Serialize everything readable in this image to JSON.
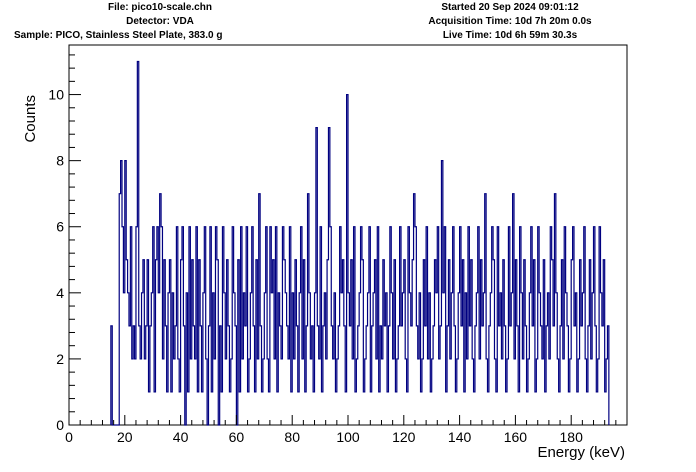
{
  "header": {
    "file": "File: pico10-scale.chn",
    "detector": "Detector: VDA",
    "sample": "Sample: PICO, Stainless Steel Plate, 383.0 g",
    "started": "Started 20 Sep 2024 09:01:12",
    "acquisition": "Acquisition Time: 10d 7h 20m 0.0s",
    "live": "Live Time: 10d 6h 59m 30.3s"
  },
  "colors": {
    "series": "#000080",
    "axis": "#000000",
    "background": "#ffffff"
  },
  "chart_data": {
    "type": "histogram",
    "xlabel": "Energy (keV)",
    "ylabel": "Counts",
    "xlim": [
      0,
      200
    ],
    "ylim": [
      0,
      11.5
    ],
    "x_ticks": [
      0,
      20,
      40,
      60,
      80,
      100,
      120,
      140,
      160,
      180
    ],
    "y_ticks": [
      0,
      2,
      4,
      6,
      8,
      10
    ],
    "bin_width": 0.5,
    "bin_start": 15,
    "values": [
      3,
      0,
      0,
      0,
      0,
      0,
      7,
      8,
      6,
      4,
      8,
      5,
      4,
      3,
      6,
      2,
      3,
      2,
      6,
      11,
      3,
      2,
      4,
      5,
      2,
      3,
      5,
      1,
      3,
      4,
      6,
      1,
      5,
      6,
      4,
      7,
      6,
      2,
      5,
      3,
      1,
      4,
      5,
      1,
      4,
      2,
      3,
      6,
      2,
      1,
      5,
      6,
      3,
      0,
      4,
      1,
      6,
      2,
      5,
      3,
      2,
      6,
      1,
      5,
      3,
      1,
      4,
      6,
      2,
      0,
      3,
      6,
      1,
      4,
      2,
      6,
      5,
      0,
      3,
      1,
      6,
      4,
      2,
      5,
      3,
      1,
      2,
      6,
      4,
      3,
      0,
      5,
      1,
      6,
      2,
      4,
      3,
      6,
      1,
      2,
      4,
      6,
      3,
      1,
      5,
      2,
      7,
      3,
      1,
      2,
      4,
      6,
      2,
      1,
      6,
      4,
      5,
      2,
      6,
      1,
      4,
      3,
      2,
      6,
      5,
      4,
      3,
      2,
      6,
      1,
      4,
      2,
      5,
      3,
      1,
      4,
      6,
      2,
      5,
      1,
      3,
      7,
      4,
      2,
      3,
      1,
      4,
      9,
      3,
      2,
      6,
      1,
      3,
      4,
      2,
      5,
      9,
      6,
      3,
      2,
      4,
      1,
      2,
      3,
      6,
      4,
      5,
      3,
      1,
      10,
      4,
      3,
      5,
      2,
      6,
      1,
      2,
      3,
      4,
      6,
      5,
      1,
      2,
      3,
      4,
      6,
      1,
      3,
      4,
      5,
      2,
      6,
      1,
      3,
      2,
      5,
      3,
      4,
      1,
      3,
      6,
      4,
      2,
      5,
      1,
      2,
      3,
      6,
      3,
      4,
      5,
      2,
      1,
      6,
      4,
      3,
      5,
      7,
      6,
      3,
      2,
      4,
      1,
      2,
      5,
      3,
      6,
      2,
      4,
      1,
      2,
      3,
      5,
      4,
      6,
      2,
      3,
      8,
      4,
      6,
      1,
      3,
      5,
      2,
      4,
      6,
      3,
      1,
      2,
      4,
      6,
      3,
      5,
      1,
      4,
      2,
      6,
      3,
      5,
      2,
      1,
      3,
      4,
      6,
      2,
      5,
      3,
      4,
      7,
      2,
      1,
      3,
      4,
      6,
      5,
      2,
      1,
      6,
      3,
      4,
      2,
      5,
      3,
      1,
      2,
      6,
      3,
      4,
      7,
      2,
      5,
      3,
      1,
      6,
      4,
      2,
      5,
      3,
      1,
      2,
      4,
      6,
      3,
      5,
      1,
      2,
      6,
      4,
      3,
      2,
      5,
      1,
      3,
      4,
      2,
      6,
      5,
      3,
      7,
      4,
      2,
      1,
      3,
      5,
      2,
      6,
      4,
      3,
      1,
      2,
      5,
      6,
      3,
      4,
      1,
      2,
      5,
      3,
      4,
      6,
      2,
      1,
      3,
      5,
      2,
      4,
      6,
      3,
      1,
      2,
      6,
      4,
      3,
      5,
      1,
      2,
      3
    ]
  }
}
